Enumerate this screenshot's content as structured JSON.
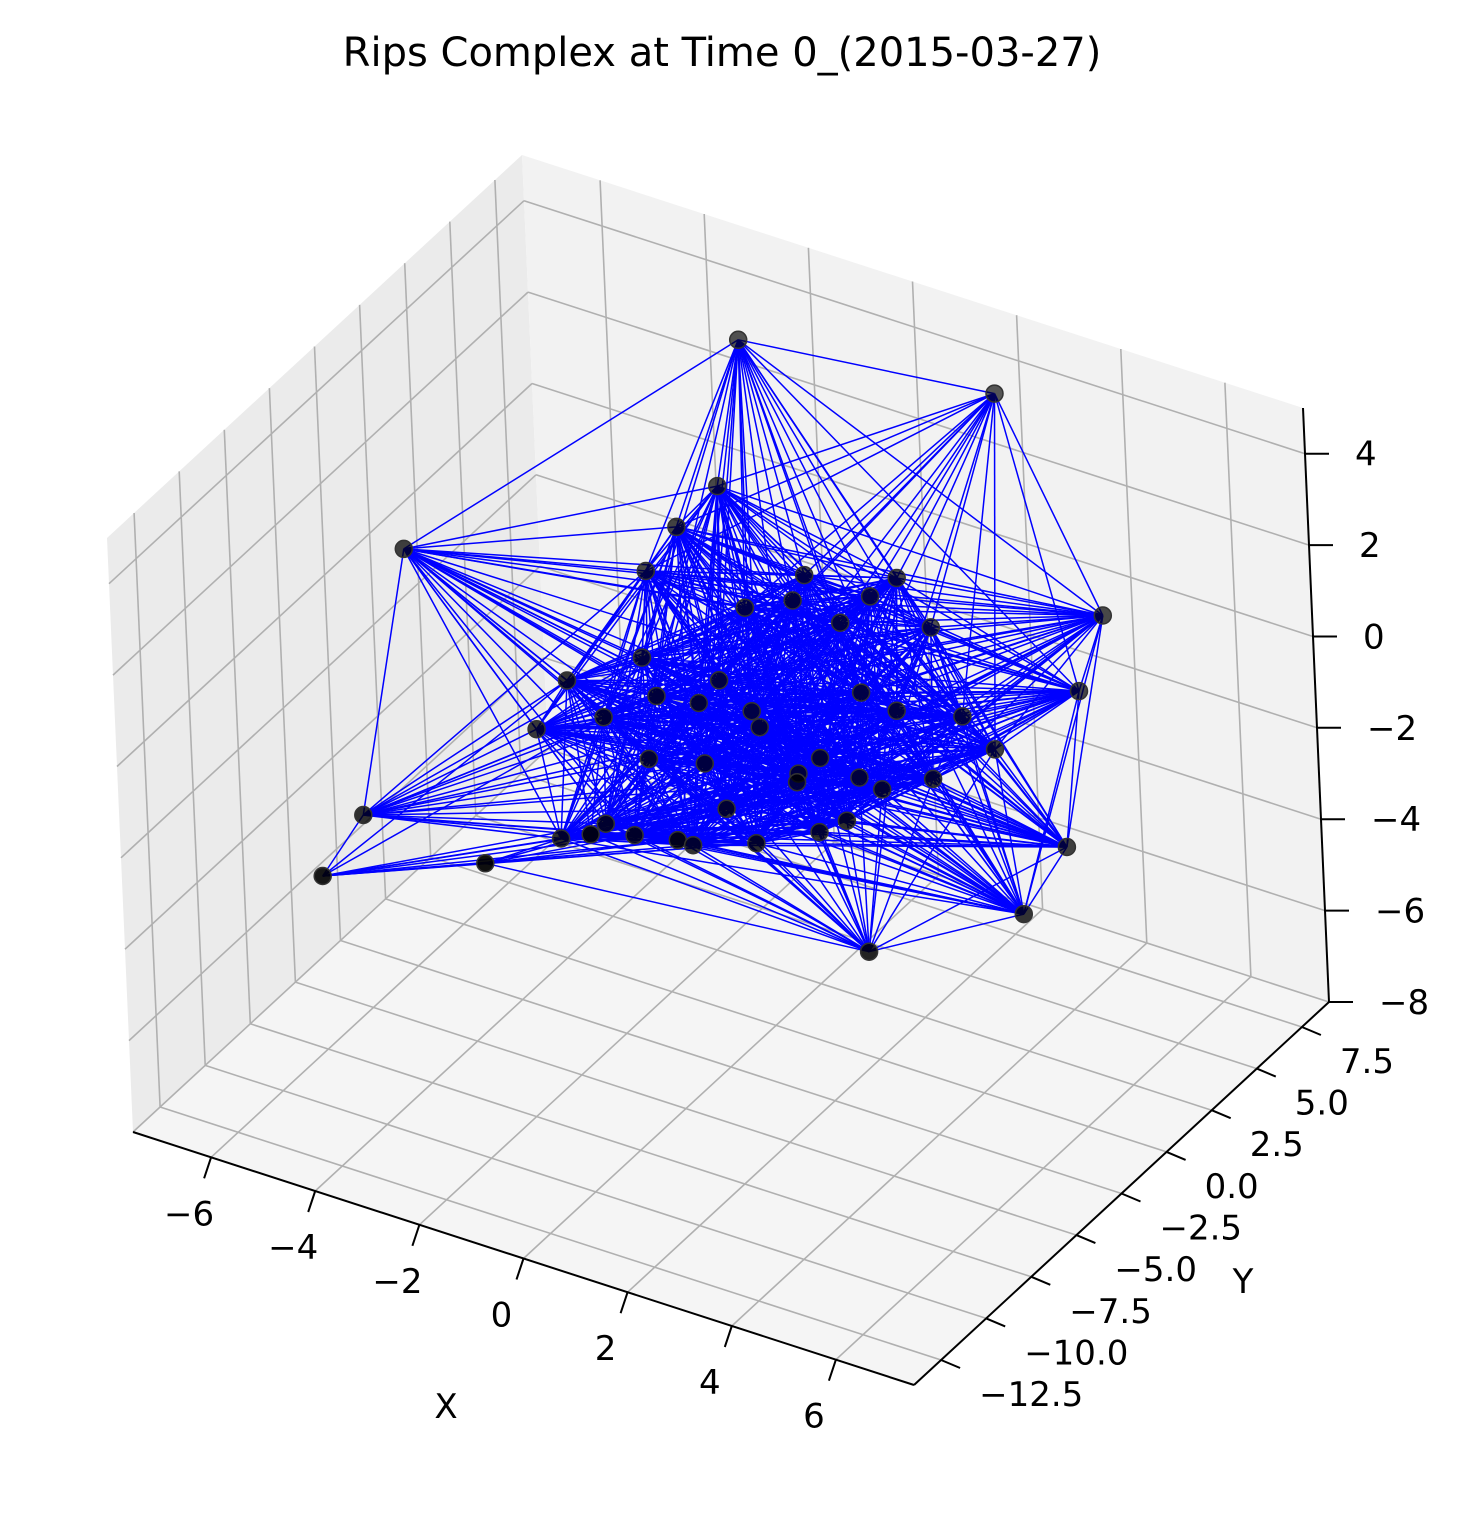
{
  "chart_data": {
    "type": "scatter-3d",
    "title": "Rips Complex at Time 0_(2015-03-27)",
    "xlabel": "X",
    "ylabel": "Y",
    "zlabel": "",
    "xlim": [
      -7.5,
      7.5
    ],
    "ylim": [
      -14,
      9
    ],
    "zlim": [
      -8,
      5
    ],
    "x_ticks": [
      "−6",
      "−4",
      "−2",
      "0",
      "2",
      "4",
      "6"
    ],
    "y_ticks": [
      "−12.5",
      "−10.0",
      "−7.5",
      "−5.0",
      "−2.5",
      "0.0",
      "2.5",
      "5.0",
      "7.5"
    ],
    "z_ticks": [
      "−8",
      "−6",
      "−4",
      "−2",
      "0",
      "2",
      "4"
    ],
    "grid": true,
    "colors": {
      "edge": "#0000ff",
      "point": "#000000",
      "pane_side": "#ebebeb",
      "pane_back": "#f2f2f2",
      "pane_floor": "#f5f5f5",
      "grid": "#b0b0b0"
    },
    "points": [
      [
        -1.8,
        4.5,
        4.7
      ],
      [
        2.6,
        6.0,
        4.6
      ],
      [
        5.8,
        2.5,
        2.2
      ],
      [
        5.6,
        1.6,
        0.8
      ],
      [
        6.0,
        -0.5,
        -1.7
      ],
      [
        6.2,
        -3.5,
        -2.0
      ],
      [
        4.8,
        -8.0,
        -1.7
      ],
      [
        -6.7,
        -0.4,
        0.1
      ],
      [
        -6.4,
        -4.0,
        -4.3
      ],
      [
        -4.5,
        -11.5,
        -2.2
      ],
      [
        -0.7,
        -13.2,
        0.1
      ],
      [
        0.5,
        -10.8,
        0.3
      ],
      [
        1.9,
        -10.0,
        0.4
      ],
      [
        -1.6,
        2.5,
        2.3
      ],
      [
        -1.7,
        0.5,
        2.1
      ],
      [
        -0.8,
        1.5,
        0.3
      ],
      [
        0.2,
        2.0,
        1.2
      ],
      [
        1.1,
        3.0,
        0.7
      ],
      [
        -0.5,
        0.8,
        -1.6
      ],
      [
        0.5,
        0.5,
        1.3
      ],
      [
        1.3,
        0.8,
        1.0
      ],
      [
        2.0,
        3.7,
        0.1
      ],
      [
        2.0,
        2.0,
        1.8
      ],
      [
        -2.3,
        0.0,
        -0.8
      ],
      [
        -1.5,
        -1.5,
        -0.8
      ],
      [
        2.8,
        -0.5,
        0.1
      ],
      [
        4.5,
        0.0,
        -0.3
      ],
      [
        -0.5,
        -2.0,
        -0.4
      ],
      [
        0.3,
        -1.0,
        -1.0
      ],
      [
        1.2,
        -1.5,
        -1.5
      ],
      [
        -2.5,
        -3.5,
        -0.1
      ],
      [
        -1.3,
        -2.6,
        -1.7
      ],
      [
        0.5,
        -3.5,
        -1.8
      ],
      [
        2.0,
        -2.5,
        -0.5
      ],
      [
        3.0,
        -2.0,
        -1.0
      ],
      [
        -3.5,
        -2.5,
        -1.9
      ],
      [
        -2.2,
        -5.0,
        -2.9
      ],
      [
        -1.5,
        -4.5,
        -2.5
      ],
      [
        -0.4,
        -6.0,
        -1.8
      ],
      [
        1.6,
        -5.0,
        -1.6
      ],
      [
        2.4,
        -3.8,
        -1.5
      ],
      [
        3.2,
        -4.5,
        -0.7
      ],
      [
        4.0,
        -2.0,
        -0.4
      ],
      [
        -1.0,
        0.5,
        -1.0
      ],
      [
        0.8,
        -0.5,
        -2.2
      ],
      [
        -2.7,
        1.5,
        0.4
      ],
      [
        -0.8,
        -1.0,
        -2.2
      ],
      [
        1.5,
        1.2,
        -0.6
      ],
      [
        3.6,
        0.8,
        -0.2
      ],
      [
        -2.0,
        -3.0,
        -0.9
      ],
      [
        0.0,
        -4.0,
        -2.6
      ],
      [
        2.2,
        -1.0,
        -1.4
      ]
    ]
  }
}
